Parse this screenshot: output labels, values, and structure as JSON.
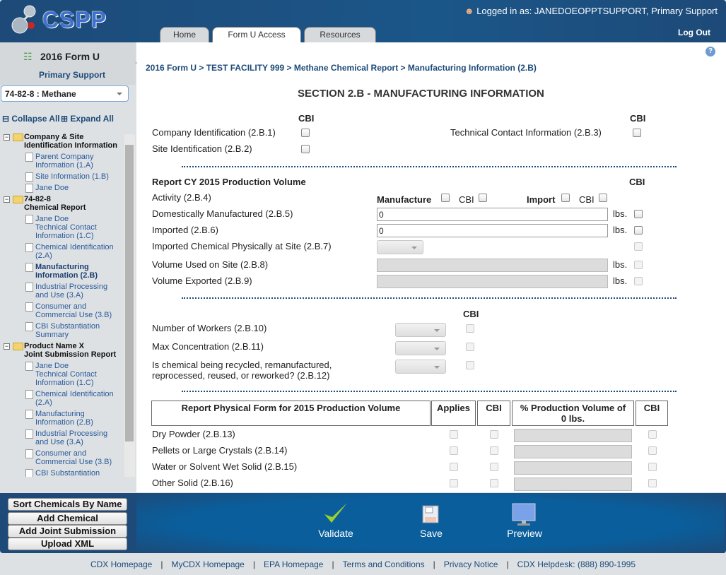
{
  "header": {
    "logo": "CSPP",
    "login_prefix": "Logged in as:",
    "user": "JANEDOEOPPTSUPPORT, Primary Support",
    "logout": "Log Out",
    "tabs": [
      {
        "label": "Home"
      },
      {
        "label": "Form U Access",
        "active": true
      },
      {
        "label": "Resources"
      }
    ]
  },
  "sidebar": {
    "title": "2016 Form U",
    "role": "Primary Support",
    "chemical_select": "74-82-8 : Methane",
    "collapse_all": "Collapse All",
    "expand_all": "Expand All",
    "tree": [
      {
        "label": "Company & Site\nIdentification Information",
        "type": "folder"
      },
      {
        "label": "Parent Company\nInformation (1.A)",
        "type": "doc"
      },
      {
        "label": "Site Information (1.B)",
        "type": "doc"
      },
      {
        "label": "Jane Doe",
        "type": "doc"
      },
      {
        "label": "74-82-8\nChemical Report",
        "type": "folder"
      },
      {
        "label": "Jane Doe\nTechnical Contact\nInformation (1.C)",
        "type": "doc"
      },
      {
        "label": "Chemical Identification\n(2.A)",
        "type": "doc"
      },
      {
        "label": "Manufacturing\nInformation (2.B)",
        "type": "doc",
        "current": true
      },
      {
        "label": "Industrial Processing\nand Use (3.A)",
        "type": "doc"
      },
      {
        "label": "Consumer and\nCommercial Use (3.B)",
        "type": "doc"
      },
      {
        "label": "CBI Substantiation\nSummary",
        "type": "doc"
      },
      {
        "label": "Product Name X\nJoint Submission Report",
        "type": "folder"
      },
      {
        "label": "Jane Doe\nTechnical Contact\nInformation (1.C)",
        "type": "doc"
      },
      {
        "label": "Chemical Identification\n(2.A)",
        "type": "doc"
      },
      {
        "label": "Manufacturing\nInformation (2.B)",
        "type": "doc"
      },
      {
        "label": "Industrial Processing\nand Use (3.A)",
        "type": "doc"
      },
      {
        "label": "Consumer and\nCommercial Use (3.B)",
        "type": "doc"
      },
      {
        "label": "CBI Substantiation",
        "type": "doc"
      }
    ],
    "buttons": {
      "sort": "Sort Chemicals By Name",
      "add_chemical": "Add Chemical",
      "add_joint": "Add Joint Submission",
      "upload": "Upload XML"
    }
  },
  "main": {
    "breadcrumb": "2016 Form U > TEST FACILITY 999 > Methane Chemical Report > Manufacturing Information (2.B)",
    "section_title": "SECTION 2.B - MANUFACTURING INFORMATION",
    "cbi": "CBI",
    "company_id": "Company Identification (2.B.1)",
    "site_id": "Site Identification (2.B.2)",
    "tech_contact": "Technical Contact Information (2.B.3)",
    "production_heading": "Report CY 2015 Production Volume",
    "activity": "Activity (2.B.4)",
    "manufacture": "Manufacture",
    "import": "Import",
    "dom_mfg": "Domestically Manufactured (2.B.5)",
    "dom_mfg_value": "0",
    "imported": "Imported (2.B.6)",
    "imported_value": "0",
    "imported_at_site": "Imported Chemical Physically at Site (2.B.7)",
    "vol_used": "Volume Used on Site (2.B.8)",
    "vol_exported": "Volume Exported (2.B.9)",
    "lbs": "lbs.",
    "workers": "Number of Workers (2.B.10)",
    "max_conc": "Max Concentration (2.B.11)",
    "recycled": "Is chemical being recycled, remanufactured,\nreprocessed, reused, or reworked? (2.B.12)",
    "physical_table": {
      "headers": [
        "Report Physical Form for 2015 Production Volume",
        "Applies",
        "CBI",
        "% Production Volume of\n0 lbs.",
        "CBI"
      ],
      "rows": [
        "Dry Powder (2.B.13)",
        "Pellets or Large Crystals (2.B.14)",
        "Water or Solvent Wet Solid (2.B.15)",
        "Other Solid (2.B.16)"
      ]
    }
  },
  "actions": {
    "validate": "Validate",
    "save": "Save",
    "preview": "Preview"
  },
  "footer": [
    "CDX Homepage",
    "MyCDX Homepage",
    "EPA Homepage",
    "Terms and Conditions",
    "Privacy Notice",
    "CDX Helpdesk: (888) 890-1995"
  ],
  "colors": {
    "header": "#1d4a78",
    "action_bar": "#0a5e9c",
    "sidebar": "#dde1e4"
  }
}
